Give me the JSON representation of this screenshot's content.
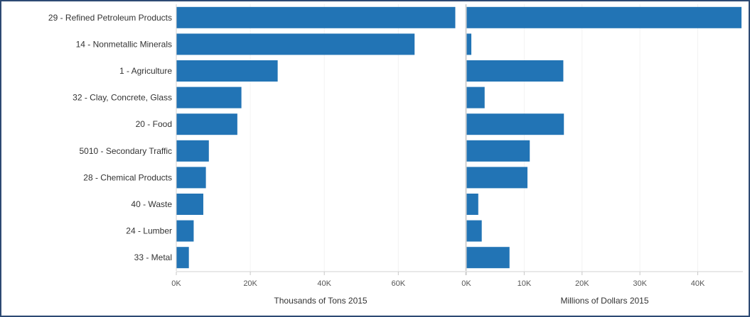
{
  "chart_data": {
    "type": "bar",
    "orientation": "horizontal",
    "categories": [
      "29 - Refined Petroleum Products",
      "14 - Nonmetallic Minerals",
      "1 - Agriculture",
      "32 - Clay, Concrete, Glass",
      "20 - Food",
      "5010 - Secondary Traffic",
      "28 - Chemical Products",
      "40 - Waste",
      "24 - Lumber",
      "33 - Metal"
    ],
    "bar_color": "#2274b5",
    "panels": [
      {
        "xlabel": "Thousands of Tons 2015",
        "values": [
          75300,
          64300,
          27300,
          17500,
          16400,
          8700,
          7900,
          7200,
          4600,
          3300
        ],
        "xlim": [
          0,
          78000
        ],
        "ticks": [
          0,
          20000,
          40000,
          60000
        ],
        "tick_labels": [
          "0K",
          "20K",
          "40K",
          "60K"
        ]
      },
      {
        "xlabel": "Millions of Dollars 2015",
        "values": [
          47500,
          800,
          16700,
          3100,
          16800,
          10900,
          10500,
          2000,
          2600,
          7400
        ],
        "xlim": [
          0,
          47800
        ],
        "ticks": [
          0,
          10000,
          20000,
          30000,
          40000
        ],
        "tick_labels": [
          "0K",
          "10K",
          "20K",
          "30K",
          "40K"
        ]
      }
    ]
  }
}
